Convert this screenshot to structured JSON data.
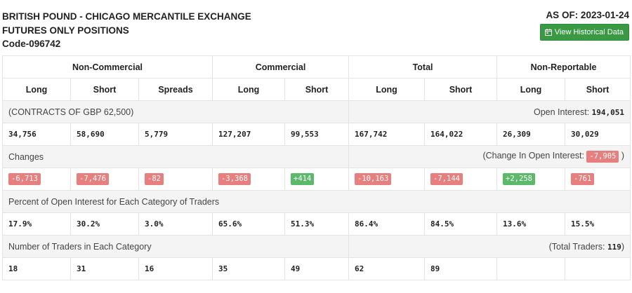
{
  "header": {
    "title_line1": "BRITISH POUND - CHICAGO MERCANTILE EXCHANGE",
    "title_line2": "FUTURES ONLY POSITIONS",
    "title_line3": "Code-096742",
    "as_of": "AS OF: 2023-01-24",
    "history_button": "View Historical Data"
  },
  "groups": [
    "Non-Commercial",
    "Commercial",
    "Total",
    "Non-Reportable"
  ],
  "columns": [
    "Long",
    "Short",
    "Spreads",
    "Long",
    "Short",
    "Long",
    "Short",
    "Long",
    "Short"
  ],
  "contracts": {
    "label": "(CONTRACTS OF GBP 62,500)",
    "open_interest_label": "Open Interest: ",
    "open_interest_value": "194,051",
    "values": [
      "34,756",
      "58,690",
      "5,779",
      "127,207",
      "99,553",
      "167,742",
      "164,022",
      "26,309",
      "30,029"
    ]
  },
  "changes": {
    "label": "Changes",
    "oi_label": "(Change In Open Interest: ",
    "oi_value": "-7,905",
    "oi_close": " )",
    "values": [
      "-6,713",
      "-7,476",
      "-82",
      "-3,368",
      "+414",
      "-10,163",
      "-7,144",
      "+2,258",
      "-761"
    ]
  },
  "percent": {
    "label": "Percent of Open Interest for Each Category of Traders",
    "values": [
      "17.9%",
      "30.2%",
      "3.0%",
      "65.6%",
      "51.3%",
      "86.4%",
      "84.5%",
      "13.6%",
      "15.5%"
    ]
  },
  "traders": {
    "label": "Number of Traders in Each Category",
    "total_label": "(Total Traders: ",
    "total_value": "119",
    "total_close": ")",
    "values": [
      "18",
      "31",
      "16",
      "35",
      "49",
      "62",
      "89",
      "",
      ""
    ]
  },
  "colors": {
    "positive": "#5cb86a",
    "negative": "#e87f7f",
    "button": "#3a9a44"
  }
}
